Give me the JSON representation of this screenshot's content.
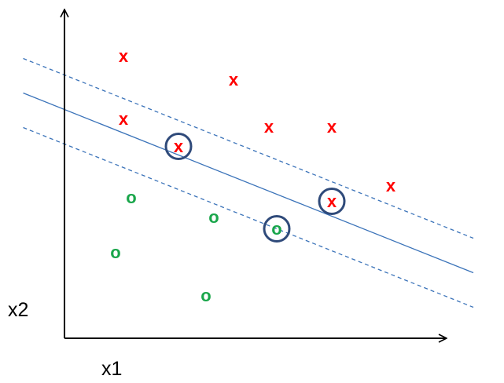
{
  "axes": {
    "x_label": "x1",
    "y_label": "x2"
  },
  "class_positive": {
    "marker": "x",
    "color": "#ff0000"
  },
  "class_negative": {
    "marker": "o",
    "color": "#1aa64b"
  },
  "colors": {
    "axis": "#000000",
    "boundary": "#3b73b9",
    "support_ring": "#2f4a7a"
  },
  "chart_data": {
    "type": "scatter",
    "xlabel": "x1",
    "ylabel": "x2",
    "series": [
      {
        "marker": "x",
        "points": [
          [
            1.5,
            7.2
          ],
          [
            4.3,
            6.6
          ],
          [
            1.5,
            5.6
          ],
          [
            5.2,
            5.4
          ],
          [
            6.8,
            5.4
          ],
          [
            2.9,
            4.9
          ],
          [
            8.3,
            3.9
          ],
          [
            6.8,
            3.5
          ]
        ],
        "support_vector": [
          false,
          false,
          false,
          false,
          false,
          true,
          false,
          true
        ]
      },
      {
        "marker": "o",
        "points": [
          [
            1.7,
            3.6
          ],
          [
            3.8,
            3.1
          ],
          [
            5.4,
            2.8
          ],
          [
            1.3,
            2.2
          ],
          [
            3.6,
            1.1
          ]
        ],
        "support_vector": [
          false,
          false,
          true,
          false,
          false
        ]
      }
    ],
    "decision_boundary": {
      "slope": -0.4,
      "intercept": 5.83,
      "style": "solid"
    },
    "margins": [
      {
        "slope": -0.4,
        "intercept": 6.71,
        "style": "dashed"
      },
      {
        "slope": -0.4,
        "intercept": 4.95,
        "style": "dashed"
      }
    ]
  }
}
